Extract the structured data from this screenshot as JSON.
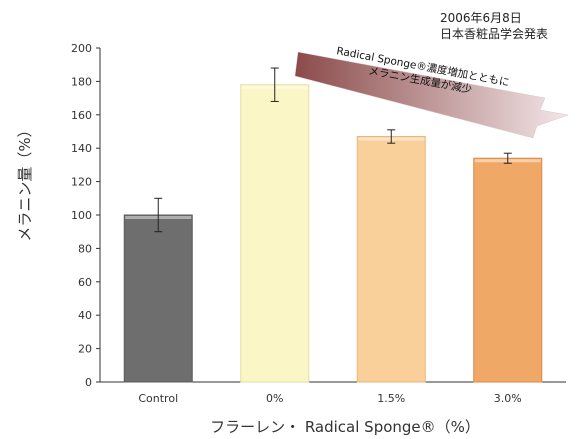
{
  "chart_data": {
    "type": "bar",
    "categories": [
      "Control",
      "0%",
      "1.5%",
      "3.0%"
    ],
    "values": [
      100,
      178,
      147,
      134
    ],
    "error": [
      10,
      10,
      4,
      3
    ],
    "ylim": [
      0,
      200
    ],
    "yticks": [
      0,
      20,
      40,
      60,
      80,
      100,
      120,
      140,
      160,
      180,
      200
    ],
    "ylabel": "メラニン量（%）",
    "xlabel": "フラーレン・ Radical Sponge®（%）",
    "bar_colors": [
      "#6e6e6e",
      "#fbf6c6",
      "#f9d09a",
      "#f0a866"
    ],
    "bar_edge_colors": [
      "#5a5a5a",
      "#e8dea0",
      "#e8b878",
      "#d88a48"
    ],
    "grid": false
  },
  "notes": {
    "date": "2006年6月8日",
    "source": "日本香粧品学会発表"
  },
  "annotation": {
    "line1": "Radical Sponge®濃度増加とともに",
    "line2": "メラニン生成量が減少",
    "arrow_color_start": "#8b4a4a",
    "arrow_color_end": "#f3e6e8"
  }
}
